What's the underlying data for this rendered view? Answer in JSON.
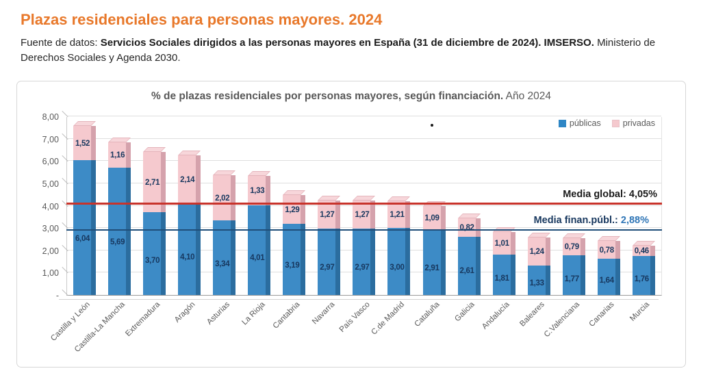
{
  "page": {
    "title": "Plazas residenciales para personas mayores. 2024",
    "source_prefix": "Fuente de datos: ",
    "source_bold": "Servicios Sociales dirigidos a las personas mayores en España (31 de diciembre de 2024). IMSERSO.",
    "source_suffix": " Ministerio de Derechos Sociales y Agenda 2030."
  },
  "chart": {
    "title_bold": "% de plazas residenciales por personas mayores, según financiación.",
    "title_regular": " Año 2024",
    "legend": [
      {
        "label": "públicas",
        "color": "#2E86C5"
      },
      {
        "label": "privadas",
        "color": "#F5C9CE"
      }
    ],
    "annotations": {
      "media_global": "Media global: 4,05%",
      "media_publica_label": "Media finan.públ.: ",
      "media_publica_value": "2,88%"
    }
  },
  "chart_data": {
    "type": "bar",
    "stacked": true,
    "title": "% de plazas residenciales por personas mayores, según financiación. Año 2024",
    "xlabel": "",
    "ylabel": "",
    "ylim": [
      0,
      8
    ],
    "ytick_step": 1,
    "yticks_display": [
      "-",
      "1,00",
      "2,00",
      "3,00",
      "4,00",
      "5,00",
      "6,00",
      "7,00",
      "8,00"
    ],
    "grid": true,
    "legend_position": "top-right",
    "categories": [
      "Castilla y León",
      "Castilla-La Mancha",
      "Extremadura",
      "Aragón",
      "Asturias",
      "La Rioja",
      "Cantabria",
      "Navarra",
      "País Vasco",
      "C.de Madrid",
      "Cataluña",
      "Galicia",
      "Andalucía",
      "Baleares",
      "C.Valenciana",
      "Canarias",
      "Murcia"
    ],
    "series": [
      {
        "name": "públicas",
        "color": "#3D8BC6",
        "values": [
          6.04,
          5.69,
          3.7,
          4.1,
          3.34,
          4.01,
          3.19,
          2.97,
          2.97,
          3.0,
          2.91,
          2.61,
          1.81,
          1.33,
          1.77,
          1.64,
          1.76
        ],
        "labels": [
          "6,04",
          "5,69",
          "3,70",
          "4,10",
          "3,34",
          "4,01",
          "3,19",
          "2,97",
          "2,97",
          "3,00",
          "2,91",
          "2,61",
          "1,81",
          "1,33",
          "1,77",
          "1,64",
          "1,76"
        ]
      },
      {
        "name": "privadas",
        "color": "#F5C9CE",
        "values": [
          1.52,
          1.16,
          2.71,
          2.14,
          2.02,
          1.33,
          1.29,
          1.27,
          1.27,
          1.21,
          1.09,
          0.82,
          1.01,
          1.24,
          0.79,
          0.78,
          0.46
        ],
        "labels": [
          "1,52",
          "1,16",
          "2,71",
          "2,14",
          "2,02",
          "1,33",
          "1,29",
          "1,27",
          "1,27",
          "1,21",
          "1,09",
          "0,82",
          "1,01",
          "1,24",
          "0,79",
          "0,78",
          "0,46"
        ]
      }
    ],
    "reference_lines": [
      {
        "name": "media-global",
        "value": 4.05,
        "color": "#C8332B",
        "label": "Media global: 4,05%"
      },
      {
        "name": "media-financiacion-publica",
        "value": 2.88,
        "color": "#1F4E79",
        "label": "Media finan.públ.: 2,88%"
      }
    ]
  }
}
